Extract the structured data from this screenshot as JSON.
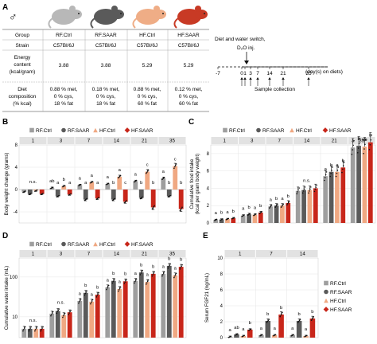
{
  "panels": {
    "A": {
      "label": "A",
      "male_symbol": "♂",
      "table": {
        "headers": [
          "Group",
          "RF.Ctrl",
          "RF.SAAR",
          "HF.Ctrl",
          "HF.SAAR"
        ],
        "strain": [
          "Strain",
          "C57Bl/6J",
          "C57Bl/6J",
          "C57Bl/6J",
          "C57Bl/6J"
        ],
        "energy": [
          "Energy content (kcal/gram)",
          "3.88",
          "3.88",
          "5.29",
          "5.29"
        ],
        "energy_lines": [
          "Energy",
          "content",
          "(kcal/gram)"
        ],
        "diet_lines": [
          "Diet",
          "composition",
          "(% kcal)"
        ],
        "diet_cells": [
          [
            "0.88 % met,",
            "0 % cys,",
            "18 % fat"
          ],
          [
            "0.18 % met,",
            "0 % cys,",
            "18 % fat"
          ],
          [
            "0.88 % met,",
            "0 % cys,",
            "60 % fat"
          ],
          [
            "0.12 % met,",
            "0 % cys,",
            "60 % fat"
          ]
        ]
      },
      "mouse_colors": [
        "#b8b8b8",
        "#5a5a5a",
        "#efad86",
        "#c83a25"
      ],
      "timeline": {
        "title": "Diet and water switch,",
        "injection": "D₂O inj.",
        "ticks": [
          "-7",
          "0",
          "1",
          "3",
          "7",
          "14",
          "21",
          "35"
        ],
        "unit": "(day(s) on diets)",
        "collection": "Sample collection"
      }
    },
    "B": {
      "label": "B",
      "ylabel": "Body weight change (grams)",
      "days": [
        "1",
        "3",
        "7",
        "14",
        "21",
        "35"
      ],
      "yticks": [
        "-4",
        "0",
        "4",
        "8"
      ],
      "sig": [
        [
          "n.s."
        ],
        [
          "ab",
          "a",
          "b",
          "a"
        ],
        [
          "a",
          "a",
          "a",
          "a"
        ],
        [
          "a",
          "b",
          "a",
          "c"
        ],
        [
          "a",
          "b",
          "c",
          "b"
        ],
        [
          "a",
          "b",
          "c",
          "b"
        ]
      ]
    },
    "C": {
      "label": "C",
      "ylabel_lines": [
        "Cumulative food intake",
        "(kcal per gram body weight)"
      ],
      "days": [
        "1",
        "3",
        "7",
        "14",
        "21",
        "35"
      ],
      "yticks": [
        "0",
        "2",
        "4",
        "6",
        "8"
      ],
      "sig": [
        [
          "a",
          "b",
          "a",
          "b"
        ],
        [
          "a",
          "b",
          "a",
          "b"
        ],
        [
          "a",
          "b",
          "a",
          "b"
        ],
        [
          "n.s."
        ],
        [
          "a",
          "b",
          "a",
          "b"
        ],
        [
          "a",
          "b",
          "ab",
          "b"
        ]
      ]
    },
    "D": {
      "label": "D",
      "ylabel": "Cumulative water intake (mL)",
      "days": [
        "1",
        "3",
        "7",
        "14",
        "21",
        "35"
      ],
      "yticks": [
        "10",
        "100"
      ],
      "sig": [
        [
          "n.s."
        ],
        [
          "n.s."
        ],
        [
          "a",
          "b",
          "a",
          "b"
        ],
        [
          "a",
          "b",
          "a",
          "b"
        ],
        [
          "a",
          "b",
          "a",
          "b"
        ],
        [
          "a",
          "b",
          "a",
          "b"
        ]
      ]
    },
    "E": {
      "label": "E",
      "ylabel": "Serum FGF21 (ng/mL)",
      "days": [
        "1",
        "7",
        "14"
      ],
      "yticks": [
        "0",
        "2",
        "4",
        "6",
        "8",
        "10"
      ],
      "sig": [
        [
          "a",
          "ab",
          "a",
          "b"
        ],
        [
          "a",
          "b",
          "a",
          "b"
        ],
        [
          "a",
          "b",
          "a",
          "b"
        ]
      ]
    }
  },
  "legend": [
    "RF.Ctrl",
    "RF.SAAR",
    "HF.Ctrl",
    "HF.SAAR"
  ],
  "legend_colors": [
    "#9e9e9e",
    "#5a5a5a",
    "#f0a882",
    "#c8261a"
  ],
  "chart_data": [
    {
      "type": "bar",
      "title": "",
      "ylabel": "Body weight change (grams)",
      "categories": [
        "1",
        "3",
        "7",
        "14",
        "21",
        "35"
      ],
      "ylim": [
        -6,
        8
      ],
      "grid": true,
      "series": [
        {
          "name": "RF.Ctrl",
          "values": [
            -0.4,
            0.3,
            0.8,
            1.0,
            1.5,
            2.0
          ]
        },
        {
          "name": "RF.SAAR",
          "values": [
            -0.8,
            -1.2,
            -1.8,
            -1.8,
            -1.5,
            -1.2
          ]
        },
        {
          "name": "HF.Ctrl",
          "values": [
            -0.2,
            0.6,
            1.3,
            2.3,
            3.2,
            4.2
          ]
        },
        {
          "name": "HF.SAAR",
          "values": [
            -0.8,
            -0.9,
            -1.6,
            -2.2,
            -3.2,
            -3.5
          ]
        }
      ]
    },
    {
      "type": "bar",
      "title": "",
      "ylabel": "Cumulative food intake (kcal per gram body weight)",
      "categories": [
        "1",
        "3",
        "7",
        "14",
        "21",
        "35"
      ],
      "ylim": [
        0,
        9
      ],
      "grid": true,
      "series": [
        {
          "name": "RF.Ctrl",
          "values": [
            0.35,
            0.85,
            1.9,
            3.7,
            5.4,
            8.7
          ]
        },
        {
          "name": "RF.SAAR",
          "values": [
            0.4,
            1.0,
            2.0,
            3.8,
            5.9,
            8.9
          ]
        },
        {
          "name": "HF.Ctrl",
          "values": [
            0.45,
            0.95,
            2.0,
            3.8,
            5.9,
            8.8
          ]
        },
        {
          "name": "HF.SAAR",
          "values": [
            0.55,
            1.2,
            2.3,
            4.0,
            6.4,
            9.3
          ]
        }
      ]
    },
    {
      "type": "bar",
      "title": "",
      "ylabel": "Cumulative water intake (mL)",
      "yscale": "log",
      "categories": [
        "1",
        "3",
        "7",
        "14",
        "21",
        "35"
      ],
      "ylim": [
        3,
        300
      ],
      "grid": true,
      "series": [
        {
          "name": "RF.Ctrl",
          "values": [
            5,
            12,
            25,
            55,
            80,
            120
          ]
        },
        {
          "name": "RF.SAAR",
          "values": [
            5,
            14,
            40,
            80,
            130,
            190
          ]
        },
        {
          "name": "HF.Ctrl",
          "values": [
            5,
            11,
            24,
            50,
            75,
            110
          ]
        },
        {
          "name": "HF.SAAR",
          "values": [
            5,
            13,
            36,
            78,
            120,
            180
          ]
        }
      ]
    },
    {
      "type": "bar",
      "title": "",
      "ylabel": "Serum FGF21 (ng/mL)",
      "categories": [
        "1",
        "7",
        "14"
      ],
      "ylim": [
        0,
        10
      ],
      "grid": true,
      "series": [
        {
          "name": "RF.Ctrl",
          "values": [
            0.1,
            0.3,
            0.3
          ]
        },
        {
          "name": "RF.SAAR",
          "values": [
            0.4,
            2.1,
            2.1
          ]
        },
        {
          "name": "HF.Ctrl",
          "values": [
            0.2,
            0.3,
            0.2
          ]
        },
        {
          "name": "HF.SAAR",
          "values": [
            1.0,
            2.9,
            2.4
          ]
        }
      ]
    }
  ]
}
